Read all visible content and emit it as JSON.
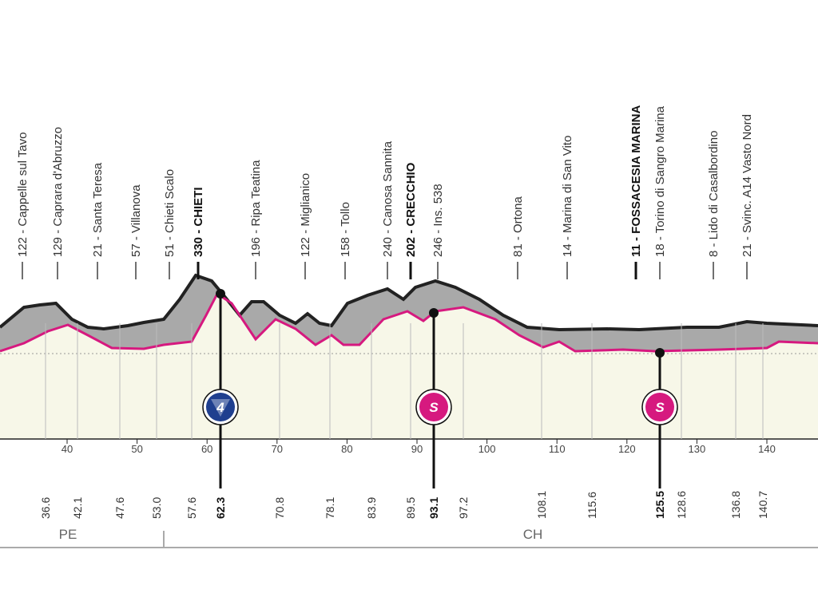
{
  "places": [
    {
      "label": "122 - Cappelle sul Tavo"
    },
    {
      "label": "129 - Caprara d'Abruzzo"
    },
    {
      "label": "21 - Santa Teresa"
    },
    {
      "label": "57 - Villanova"
    },
    {
      "label": "51 - Chieti Scalo"
    },
    {
      "label": "330 - CHIETI"
    },
    {
      "label": "196 - Ripa Teatina"
    },
    {
      "label": "122 - Miglianico"
    },
    {
      "label": "158 - Tollo"
    },
    {
      "label": "240 - Canosa Sannita"
    },
    {
      "label": "202 - CRECCHIO"
    },
    {
      "label": "246 - Ins. 538"
    },
    {
      "label": "81 - Ortona"
    },
    {
      "label": "14 - Marina di San Vito"
    },
    {
      "label": "11 - FOSSACESIA MARINA"
    },
    {
      "label": "18 - Torino di Sangro Marina"
    },
    {
      "label": "8 - Lido di Casalbordino"
    },
    {
      "label": "21 - Svinc. A14 Vasto Nord"
    }
  ],
  "km_marks": [
    "36.6",
    "42.1",
    "47.6",
    "53.0",
    "57.6",
    "62.3",
    "70.8",
    "78.1",
    "83.9",
    "89.5",
    "93.1",
    "97.2",
    "108.1",
    "115.6",
    "125.5",
    "128.6",
    "136.8",
    "140.7"
  ],
  "axis_ticks": [
    40,
    50,
    60,
    70,
    80,
    90,
    100,
    110,
    120,
    130,
    140
  ],
  "regions": [
    "PE",
    "CH"
  ],
  "badges": [
    "4",
    "S",
    "S"
  ]
}
